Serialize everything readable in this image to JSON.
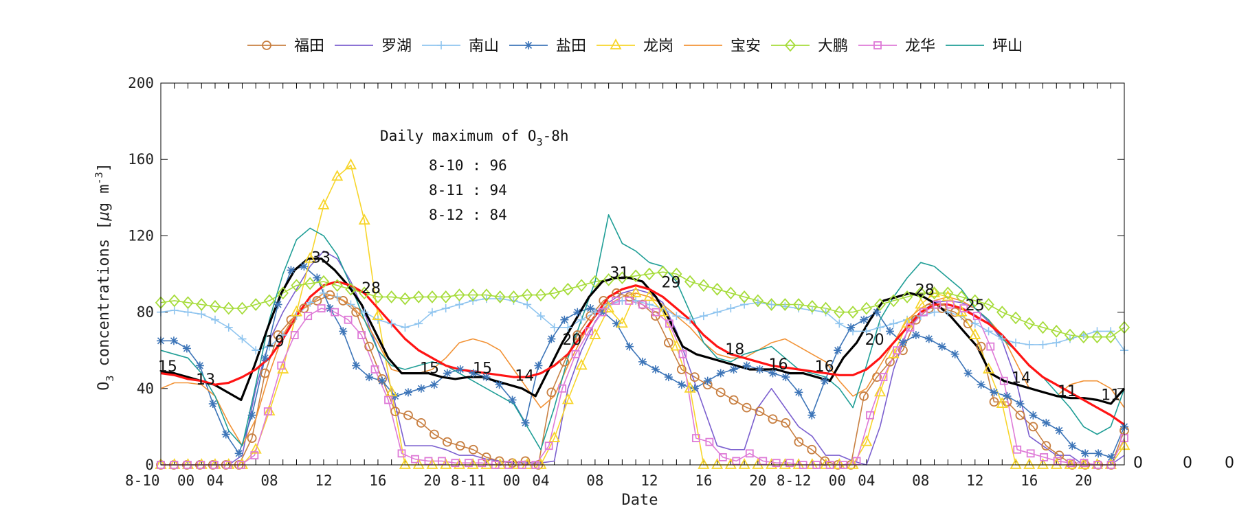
{
  "chart_data": {
    "type": "line",
    "xlabel": "Date",
    "ylabel_parts": [
      "O",
      "3",
      " concentrations [",
      "μ",
      "g m",
      "-3",
      "]"
    ],
    "ylim": [
      0,
      200
    ],
    "yticks": [
      "0",
      "40",
      "80",
      "120",
      "160",
      "200"
    ],
    "xlim": [
      0,
      71
    ],
    "xticks": [
      {
        "x": 0,
        "label": "8-10  00"
      },
      {
        "x": 4,
        "label": "04"
      },
      {
        "x": 8,
        "label": "08"
      },
      {
        "x": 12,
        "label": "12"
      },
      {
        "x": 16,
        "label": "16"
      },
      {
        "x": 20,
        "label": "20"
      },
      {
        "x": 24,
        "label": "8-11  00"
      },
      {
        "x": 28,
        "label": "04"
      },
      {
        "x": 32,
        "label": "08"
      },
      {
        "x": 36,
        "label": "12"
      },
      {
        "x": 40,
        "label": "16"
      },
      {
        "x": 44,
        "label": "20"
      },
      {
        "x": 48,
        "label": "8-12  00"
      },
      {
        "x": 52,
        "label": "04"
      },
      {
        "x": 56,
        "label": "08"
      },
      {
        "x": 60,
        "label": "12"
      },
      {
        "x": 64,
        "label": "16"
      },
      {
        "x": 68,
        "label": "20"
      }
    ],
    "annotation": {
      "title_parts": [
        "Daily maximum of O",
        "3",
        "-8h"
      ],
      "lines": [
        "8-10 : 96",
        "8-11 : 94",
        "8-12 : 84"
      ]
    },
    "bottom_right_labels": [
      "0",
      "0",
      "0"
    ],
    "legend_placement": "top",
    "series": [
      {
        "name": "福田",
        "color": "#c87f41",
        "marker": "circle",
        "markers": true,
        "values": [
          0,
          0,
          0,
          0,
          0,
          0,
          0,
          14,
          48,
          68,
          76,
          82,
          86,
          89,
          86,
          80,
          62,
          45,
          28,
          26,
          22,
          16,
          12,
          10,
          8,
          4,
          2,
          1,
          2,
          0,
          38,
          54,
          68,
          78,
          86,
          90,
          88,
          84,
          78,
          64,
          50,
          46,
          42,
          38,
          34,
          30,
          28,
          24,
          22,
          12,
          8,
          2,
          0,
          0,
          36,
          46,
          54,
          60,
          76,
          82,
          82,
          80,
          74,
          62,
          33,
          33,
          26,
          20,
          10,
          5,
          0,
          0,
          0,
          0,
          18
        ]
      },
      {
        "name": "罗湖",
        "color": "#7b5fcf",
        "marker": "none",
        "markers": false,
        "values": [
          0,
          0,
          0,
          0,
          0,
          0,
          5,
          40,
          65,
          80,
          92,
          104,
          112,
          108,
          96,
          80,
          60,
          40,
          10,
          10,
          10,
          8,
          5,
          5,
          3,
          2,
          1,
          1,
          1,
          2,
          40,
          60,
          75,
          85,
          90,
          92,
          90,
          85,
          70,
          50,
          30,
          10,
          8,
          8,
          30,
          40,
          30,
          20,
          15,
          5,
          5,
          2,
          0,
          20,
          50,
          70,
          80,
          85,
          86,
          85,
          82,
          75,
          65,
          45,
          15,
          10,
          5,
          5,
          0,
          0,
          0,
          5
        ]
      },
      {
        "name": "南山",
        "color": "#8ec4ef",
        "marker": "plus",
        "markers": true,
        "values": [
          80,
          81,
          80,
          79,
          76,
          72,
          66,
          60,
          62,
          68,
          78,
          85,
          90,
          88,
          84,
          80,
          76,
          74,
          72,
          74,
          80,
          82,
          84,
          86,
          87,
          87,
          86,
          84,
          78,
          72,
          72,
          76,
          80,
          84,
          86,
          86,
          84,
          82,
          78,
          76,
          78,
          80,
          82,
          84,
          85,
          84,
          83,
          82,
          81,
          80,
          74,
          70,
          70,
          72,
          74,
          76,
          78,
          80,
          80,
          78,
          74,
          70,
          66,
          64,
          63,
          63,
          64,
          66,
          68,
          70,
          70,
          60
        ]
      },
      {
        "name": "盐田",
        "color": "#3d75b8",
        "marker": "star",
        "markers": true,
        "values": [
          65,
          65,
          61,
          52,
          32,
          16,
          6,
          26,
          56,
          84,
          102,
          104,
          98,
          82,
          70,
          52,
          46,
          44,
          36,
          38,
          40,
          42,
          48,
          50,
          48,
          46,
          42,
          34,
          22,
          52,
          66,
          76,
          80,
          82,
          80,
          74,
          62,
          54,
          50,
          46,
          42,
          40,
          44,
          48,
          50,
          52,
          50,
          48,
          46,
          38,
          26,
          44,
          60,
          72,
          76,
          80,
          70,
          64,
          68,
          66,
          62,
          58,
          48,
          42,
          38,
          36,
          32,
          26,
          22,
          18,
          10,
          6,
          6,
          4,
          20
        ]
      },
      {
        "name": "龙岗",
        "color": "#f7d52a",
        "marker": "triangle",
        "markers": true,
        "values": [
          0,
          0,
          0,
          0,
          0,
          0,
          0,
          8,
          28,
          50,
          80,
          108,
          136,
          151,
          157,
          128,
          78,
          38,
          0,
          0,
          0,
          0,
          0,
          0,
          0,
          0,
          0,
          0,
          0,
          14,
          34,
          52,
          68,
          82,
          74,
          90,
          88,
          80,
          62,
          40,
          0,
          0,
          0,
          0,
          0,
          0,
          0,
          0,
          0,
          0,
          0,
          0,
          12,
          38,
          58,
          74,
          84,
          90,
          88,
          80,
          68,
          50,
          32,
          0,
          0,
          0,
          0,
          0,
          0,
          0,
          0,
          10
        ]
      },
      {
        "name": "宝安",
        "color": "#f29235",
        "marker": "none",
        "markers": false,
        "values": [
          40,
          43,
          43,
          42,
          36,
          22,
          10,
          24,
          48,
          68,
          80,
          84,
          90,
          88,
          84,
          76,
          64,
          50,
          48,
          48,
          50,
          56,
          64,
          66,
          64,
          60,
          50,
          40,
          30,
          36,
          52,
          66,
          78,
          84,
          88,
          90,
          88,
          84,
          78,
          72,
          64,
          58,
          56,
          56,
          60,
          64,
          66,
          62,
          58,
          54,
          44,
          36,
          40,
          52,
          64,
          76,
          82,
          86,
          88,
          86,
          82,
          76,
          68,
          54,
          40,
          38,
          36,
          42,
          44,
          44,
          40,
          30
        ]
      },
      {
        "name": "大鹏",
        "color": "#a6dc3a",
        "marker": "diamond",
        "markers": true,
        "values": [
          85,
          86,
          85,
          84,
          83,
          82,
          82,
          84,
          86,
          90,
          94,
          95,
          96,
          94,
          92,
          90,
          88,
          88,
          87,
          88,
          88,
          88,
          89,
          89,
          89,
          88,
          88,
          89,
          89,
          90,
          92,
          94,
          96,
          97,
          98,
          99,
          100,
          101,
          100,
          96,
          94,
          92,
          90,
          88,
          86,
          84,
          84,
          84,
          83,
          82,
          80,
          80,
          82,
          84,
          86,
          88,
          90,
          90,
          90,
          88,
          86,
          84,
          80,
          77,
          74,
          72,
          70,
          68,
          67,
          67,
          67,
          72
        ]
      },
      {
        "name": "龙华",
        "color": "#de7ad7",
        "marker": "square",
        "markers": true,
        "values": [
          0,
          0,
          0,
          0,
          0,
          0,
          0,
          5,
          28,
          52,
          68,
          78,
          82,
          80,
          76,
          68,
          50,
          34,
          6,
          3,
          2,
          2,
          1,
          1,
          1,
          0,
          0,
          0,
          0,
          10,
          40,
          58,
          70,
          80,
          86,
          86,
          84,
          80,
          74,
          58,
          14,
          12,
          4,
          2,
          6,
          2,
          1,
          1,
          0,
          0,
          0,
          0,
          2,
          26,
          46,
          60,
          72,
          80,
          84,
          84,
          82,
          78,
          62,
          44,
          8,
          6,
          4,
          2,
          1,
          1,
          0,
          0,
          14
        ]
      },
      {
        "name": "坪山",
        "color": "#1f9e96",
        "marker": "none",
        "markers": false,
        "values": [
          60,
          58,
          56,
          48,
          36,
          18,
          10,
          42,
          76,
          100,
          118,
          124,
          120,
          110,
          94,
          76,
          60,
          52,
          50,
          52,
          54,
          52,
          48,
          44,
          40,
          36,
          32,
          20,
          8,
          30,
          56,
          76,
          96,
          131,
          116,
          112,
          106,
          104,
          96,
          80,
          64,
          56,
          54,
          58,
          60,
          62,
          56,
          50,
          48,
          46,
          40,
          30,
          52,
          76,
          88,
          98,
          106,
          104,
          98,
          92,
          82,
          76,
          66,
          60,
          52,
          46,
          38,
          30,
          20,
          16,
          20,
          40
        ]
      },
      {
        "name": "",
        "color": "#000000",
        "marker": "none",
        "markers": false,
        "width": 3.2,
        "values": [
          49,
          48,
          46,
          44,
          42,
          38,
          34,
          52,
          72,
          90,
          102,
          108,
          108,
          102,
          94,
          84,
          70,
          56,
          48,
          48,
          48,
          46,
          45,
          46,
          46,
          44,
          42,
          40,
          36,
          50,
          64,
          76,
          88,
          96,
          98,
          98,
          96,
          88,
          76,
          62,
          58,
          56,
          54,
          52,
          50,
          50,
          50,
          48,
          48,
          46,
          44,
          56,
          64,
          76,
          86,
          88,
          90,
          88,
          84,
          78,
          70,
          62,
          48,
          44,
          42,
          40,
          38,
          36,
          35,
          35,
          34,
          32,
          40
        ]
      },
      {
        "name": "",
        "color": "#ff1414",
        "marker": "none",
        "markers": false,
        "width": 3.2,
        "values": [
          48,
          47,
          45,
          44,
          42,
          43,
          46,
          50,
          56,
          66,
          78,
          88,
          94,
          96,
          94,
          90,
          82,
          74,
          66,
          60,
          56,
          52,
          50,
          49,
          48,
          47,
          46,
          46,
          48,
          52,
          58,
          68,
          78,
          88,
          92,
          94,
          92,
          88,
          82,
          76,
          68,
          62,
          58,
          56,
          54,
          52,
          51,
          50,
          49,
          48,
          47,
          47,
          50,
          56,
          64,
          72,
          80,
          84,
          84,
          82,
          78,
          74,
          68,
          60,
          52,
          46,
          42,
          38,
          34,
          30,
          26,
          21
        ]
      }
    ],
    "point_labels": [
      {
        "x": 0.5,
        "y": 49,
        "text": "15"
      },
      {
        "x": 3.3,
        "y": 42,
        "text": "13"
      },
      {
        "x": 8.4,
        "y": 62,
        "text": "19"
      },
      {
        "x": 11.8,
        "y": 106,
        "text": "33"
      },
      {
        "x": 15.5,
        "y": 90,
        "text": "28"
      },
      {
        "x": 19.8,
        "y": 48,
        "text": "15"
      },
      {
        "x": 23.7,
        "y": 48,
        "text": "15"
      },
      {
        "x": 26.8,
        "y": 44,
        "text": "14"
      },
      {
        "x": 30.3,
        "y": 63,
        "text": "20"
      },
      {
        "x": 33.8,
        "y": 98,
        "text": "31"
      },
      {
        "x": 37.6,
        "y": 93,
        "text": "29"
      },
      {
        "x": 42.3,
        "y": 58,
        "text": "18"
      },
      {
        "x": 45.5,
        "y": 50,
        "text": "16"
      },
      {
        "x": 48.9,
        "y": 49,
        "text": "16"
      },
      {
        "x": 52.6,
        "y": 63,
        "text": "20"
      },
      {
        "x": 56.3,
        "y": 89,
        "text": "28"
      },
      {
        "x": 60.0,
        "y": 81,
        "text": "25"
      },
      {
        "x": 63.4,
        "y": 43,
        "text": "14"
      },
      {
        "x": 66.8,
        "y": 36,
        "text": "11"
      },
      {
        "x": 70.0,
        "y": 34,
        "text": "11"
      }
    ]
  }
}
